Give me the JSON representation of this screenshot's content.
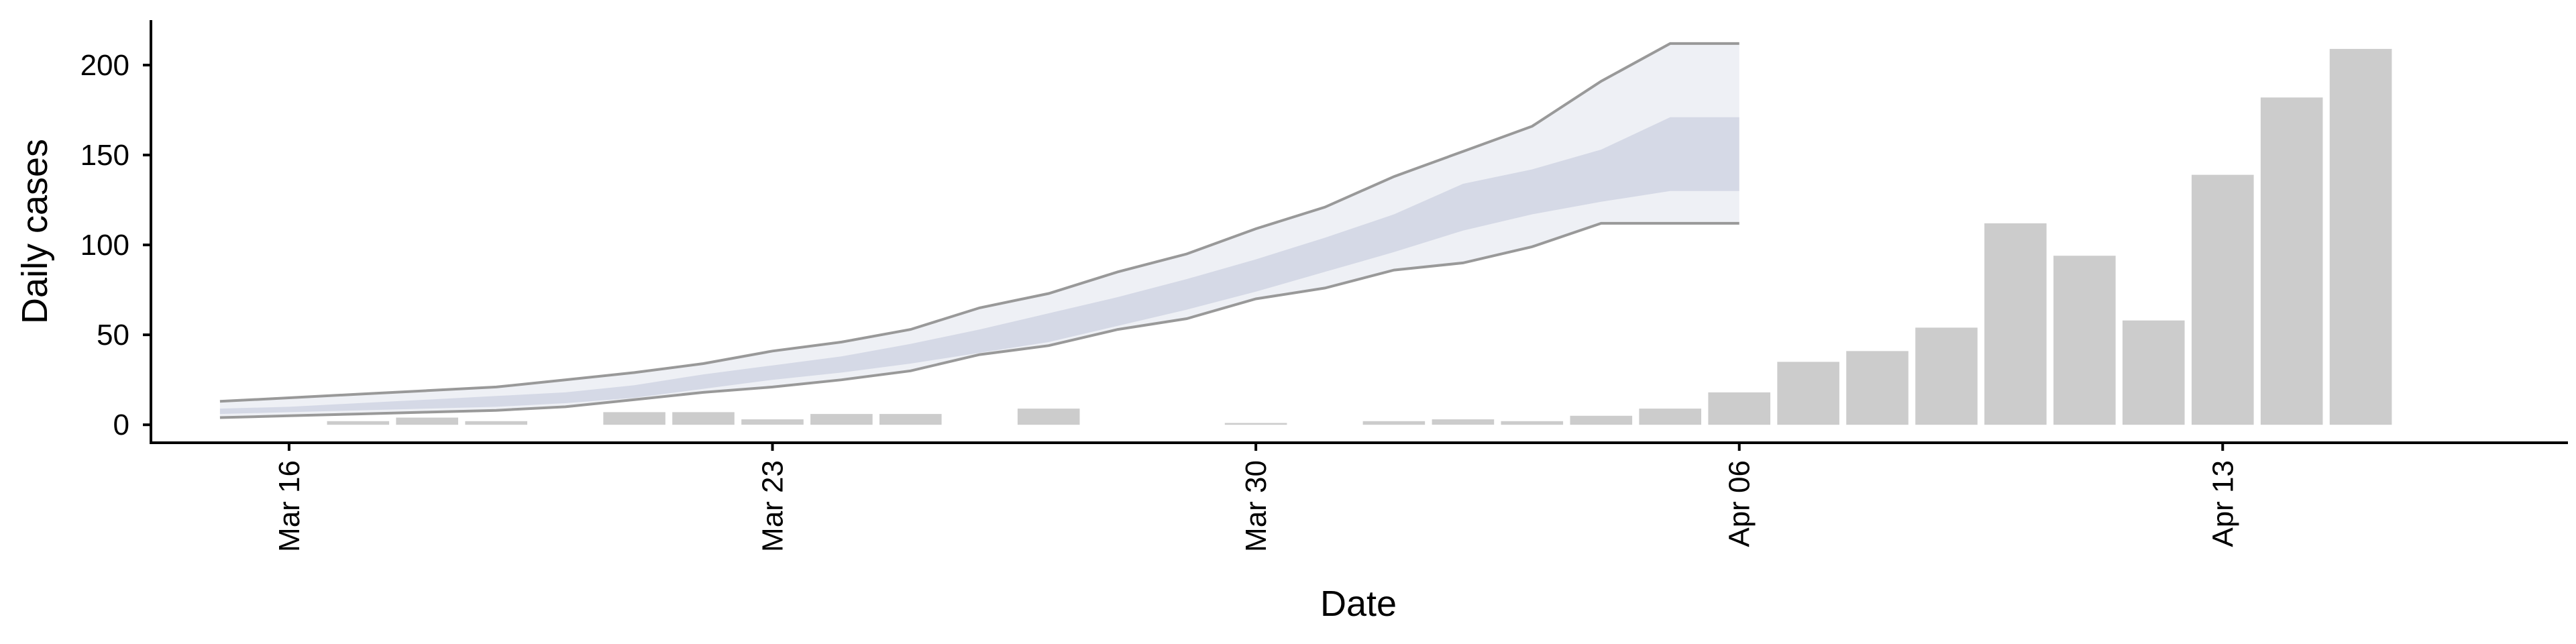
{
  "chart_data": {
    "type": "bar",
    "xlabel": "Date",
    "ylabel": "Daily cases",
    "x_ticks": [
      "Mar 16",
      "Mar 23",
      "Mar 30",
      "Apr 06",
      "Apr 13"
    ],
    "y_ticks": [
      "0",
      "50",
      "100",
      "150",
      "200"
    ],
    "ylim": [
      -10,
      225
    ],
    "xlim": [
      "2020-03-14",
      "2020-04-18"
    ],
    "grid": false,
    "legend": "none",
    "bars": {
      "color": "#cccccc",
      "dates": [
        "2020-03-16",
        "2020-03-17",
        "2020-03-18",
        "2020-03-19",
        "2020-03-20",
        "2020-03-21",
        "2020-03-22",
        "2020-03-23",
        "2020-03-24",
        "2020-03-25",
        "2020-03-26",
        "2020-03-27",
        "2020-03-28",
        "2020-03-29",
        "2020-03-30",
        "2020-03-31",
        "2020-04-01",
        "2020-04-02",
        "2020-04-03",
        "2020-04-04",
        "2020-04-05",
        "2020-04-06",
        "2020-04-07",
        "2020-04-08",
        "2020-04-09",
        "2020-04-10",
        "2020-04-11",
        "2020-04-12",
        "2020-04-13",
        "2020-04-14",
        "2020-04-15"
      ],
      "values": [
        0,
        2,
        4,
        2,
        0,
        7,
        7,
        3,
        6,
        6,
        0,
        9,
        0,
        0,
        1,
        0,
        2,
        3,
        2,
        5,
        9,
        18,
        35,
        41,
        54,
        112,
        94,
        58,
        139,
        182,
        209
      ]
    },
    "projection": {
      "dates": [
        "2020-03-15",
        "2020-03-16",
        "2020-03-17",
        "2020-03-18",
        "2020-03-19",
        "2020-03-20",
        "2020-03-21",
        "2020-03-22",
        "2020-03-23",
        "2020-03-24",
        "2020-03-25",
        "2020-03-26",
        "2020-03-27",
        "2020-03-28",
        "2020-03-29",
        "2020-03-30",
        "2020-03-31",
        "2020-04-01",
        "2020-04-02",
        "2020-04-03",
        "2020-04-04",
        "2020-04-05",
        "2020-04-06"
      ],
      "upper": [
        13,
        15,
        17,
        19,
        21,
        25,
        29,
        34,
        41,
        46,
        53,
        65,
        73,
        85,
        95,
        109,
        121,
        138,
        152,
        166,
        191,
        212,
        212
      ],
      "lower": [
        4,
        5,
        6,
        7,
        8,
        10,
        14,
        18,
        21,
        25,
        30,
        39,
        44,
        53,
        59,
        70,
        76,
        86,
        90,
        99,
        112,
        112,
        112
      ],
      "inner_upper": [
        9,
        10,
        12,
        14,
        16,
        18,
        22,
        28,
        33,
        38,
        45,
        53,
        62,
        71,
        81,
        92,
        104,
        117,
        134,
        142,
        153,
        171,
        171
      ],
      "inner_lower": [
        6,
        7,
        8,
        9,
        10,
        12,
        15,
        20,
        25,
        29,
        34,
        40,
        46,
        55,
        64,
        74,
        85,
        96,
        108,
        117,
        124,
        130,
        130
      ],
      "outer_color": "#eef0f5",
      "inner_color": "#d5d9e6",
      "line_color": "#999999"
    }
  }
}
